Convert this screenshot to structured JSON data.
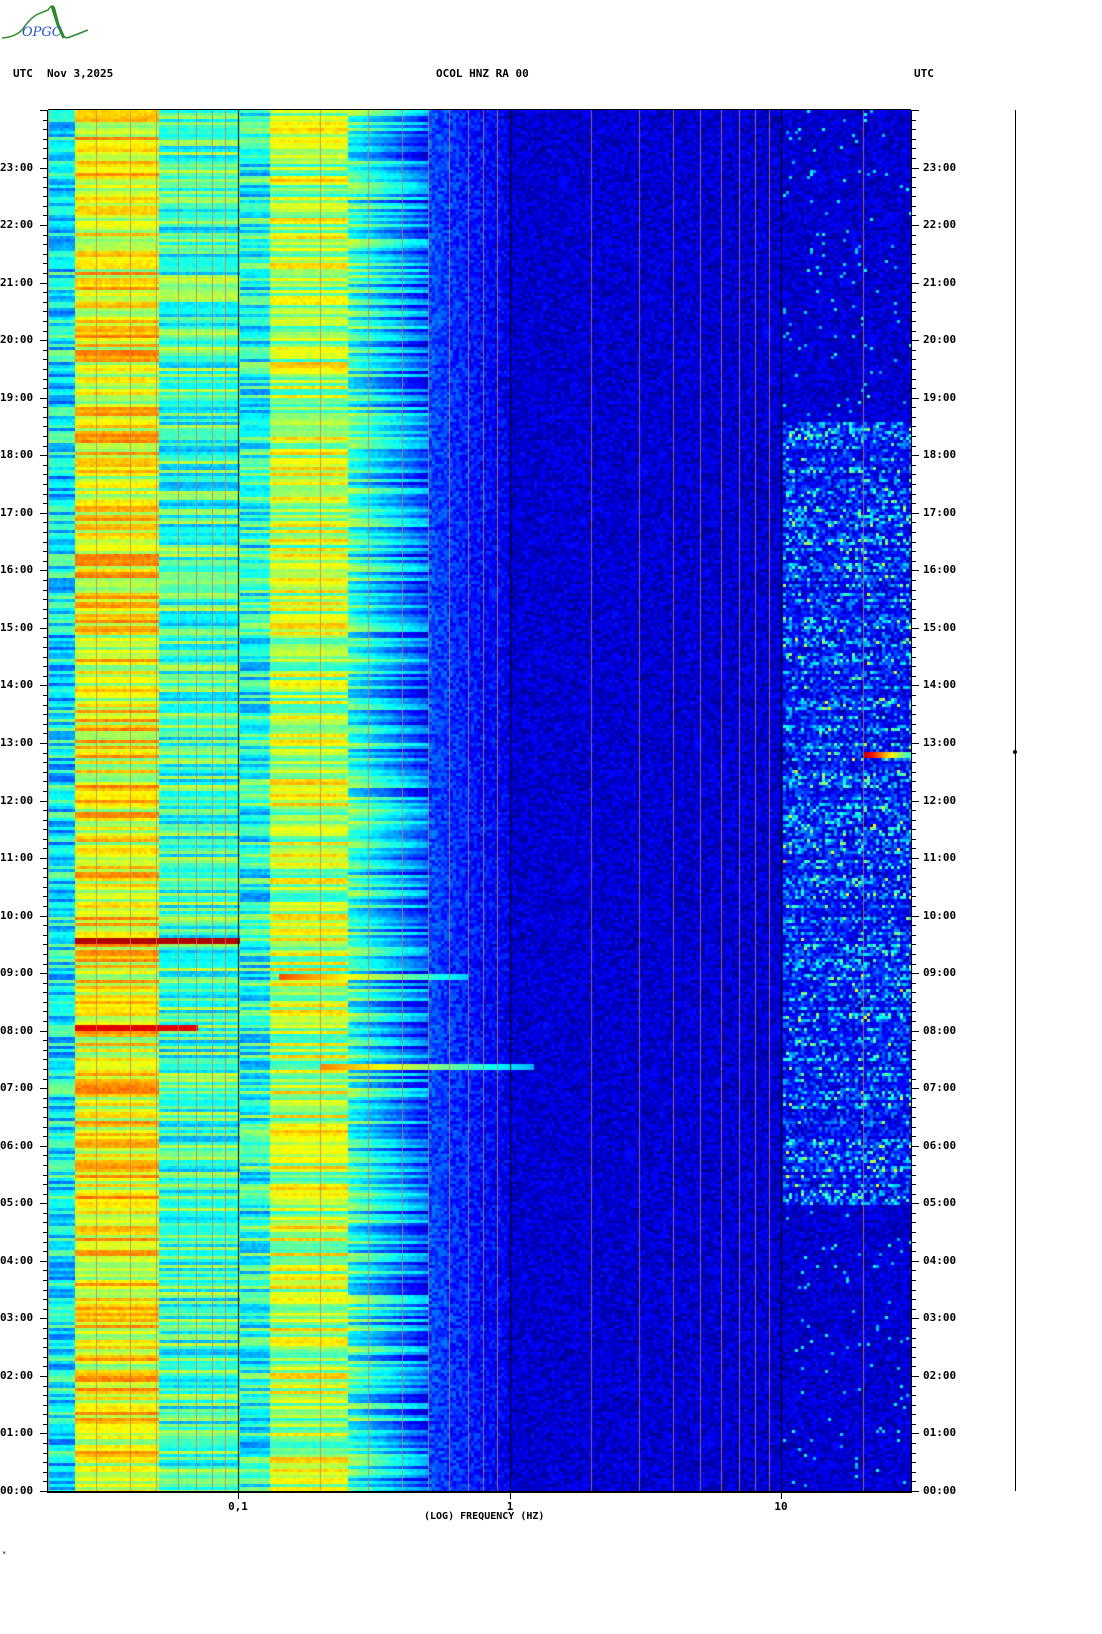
{
  "header": {
    "left_tz": "UTC",
    "date": "Nov 3,2025",
    "station": "OCOL HNZ RA 00",
    "right_tz": "UTC"
  },
  "logo": {
    "text": "OPGC"
  },
  "footer_mark": "*",
  "chart_data": {
    "type": "heatmap",
    "title": "OCOL HNZ RA 00",
    "xlabel": "(LOG) FREQUENCY (HZ)",
    "xscale": "log",
    "xlim": [
      0.02,
      30
    ],
    "x_ticks": [
      {
        "value": 0.1,
        "label": "0,1"
      },
      {
        "value": 1,
        "label": "1"
      },
      {
        "value": 10,
        "label": "10"
      }
    ],
    "ylim_hours": [
      0,
      24
    ],
    "y_ticks": [
      "00:00",
      "01:00",
      "02:00",
      "03:00",
      "04:00",
      "05:00",
      "06:00",
      "07:00",
      "08:00",
      "09:00",
      "10:00",
      "11:00",
      "12:00",
      "13:00",
      "14:00",
      "15:00",
      "16:00",
      "17:00",
      "18:00",
      "19:00",
      "20:00",
      "21:00",
      "22:00",
      "23:00"
    ],
    "colormap": "jet",
    "colors": {
      "low": "#0000ff",
      "mid": "#00ffff",
      "high_mid": "#ffff00",
      "high": "#ff0000",
      "grid_minor": "#c08060",
      "grid_major": "#000000"
    },
    "grid": true,
    "features": [
      {
        "kind": "horizontal-band",
        "hour": 9.6,
        "f_min": 0.025,
        "f_max": 0.1,
        "level": 0.95
      },
      {
        "kind": "horizontal-band",
        "hour": 8.05,
        "f_min": 0.025,
        "f_max": 0.07,
        "level": 0.9
      },
      {
        "kind": "horizontal-band",
        "hour": 8.95,
        "f_min": 0.14,
        "f_max": 0.7,
        "level": 0.8
      },
      {
        "kind": "horizontal-band",
        "hour": 7.38,
        "f_min": 0.2,
        "f_max": 1.2,
        "level": 0.75
      },
      {
        "kind": "high-frequency-activity",
        "hour_min": 5.0,
        "hour_max": 18.6,
        "f_min": 10,
        "f_max": 30
      },
      {
        "kind": "horizontal-band",
        "hour": 12.8,
        "f_min": 20,
        "f_max": 30,
        "level": 0.95
      }
    ]
  }
}
